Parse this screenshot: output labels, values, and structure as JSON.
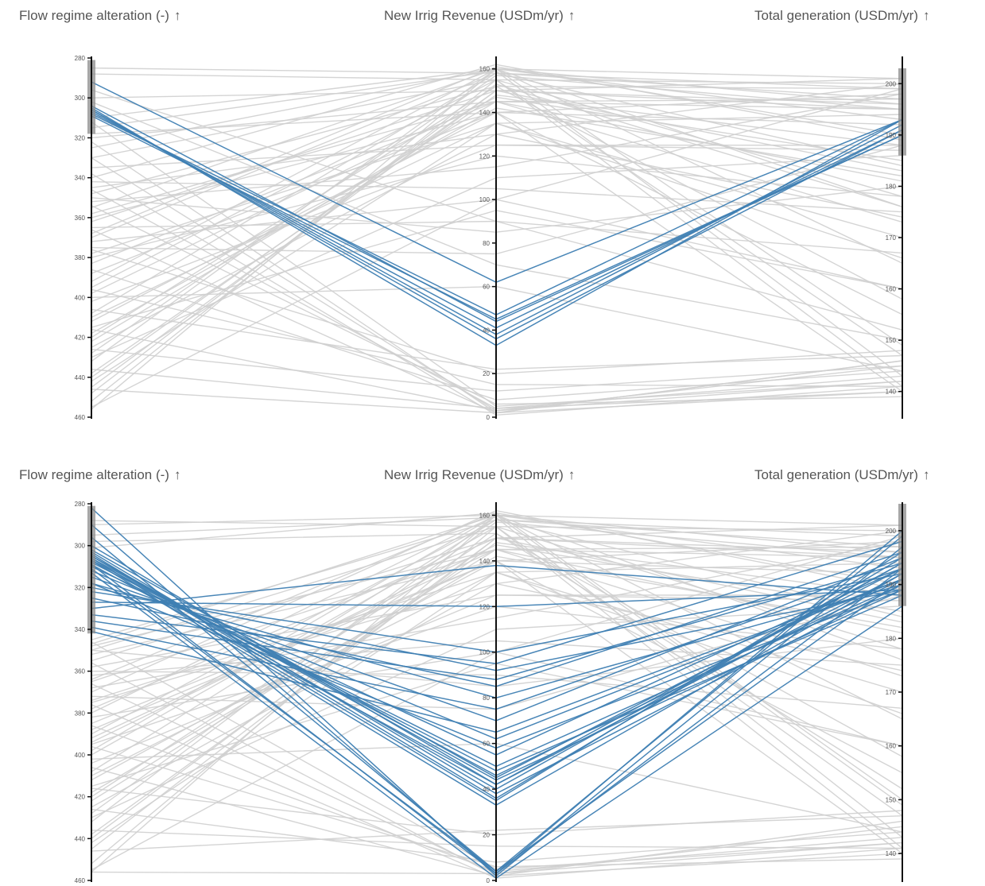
{
  "panels": [
    {
      "id": "top",
      "axes": [
        {
          "title": "Flow regime alteration (-)",
          "arrow": "↑",
          "ticks": [
            "280",
            "300",
            "320",
            "340",
            "360",
            "380",
            "400",
            "420",
            "440",
            "460"
          ]
        },
        {
          "title": "New Irrig Revenue (USDm/yr)",
          "arrow": "↑",
          "ticks": [
            "0",
            "20",
            "40",
            "60",
            "80",
            "100",
            "120",
            "140",
            "160"
          ]
        },
        {
          "title": "Total generation (USDm/yr)",
          "arrow": "↑",
          "ticks": [
            "140",
            "150",
            "160",
            "170",
            "180",
            "190",
            "200"
          ]
        }
      ]
    },
    {
      "id": "bottom",
      "axes": [
        {
          "title": "Flow regime alteration (-)",
          "arrow": "↑",
          "ticks": [
            "280",
            "300",
            "320",
            "340",
            "360",
            "380",
            "400",
            "420",
            "440",
            "460"
          ]
        },
        {
          "title": "New Irrig Revenue (USDm/yr)",
          "arrow": "↑",
          "ticks": [
            "0",
            "20",
            "40",
            "60",
            "80",
            "100",
            "120",
            "140",
            "160"
          ]
        },
        {
          "title": "Total generation (USDm/yr)",
          "arrow": "↑",
          "ticks": [
            "140",
            "150",
            "160",
            "170",
            "180",
            "190",
            "200"
          ]
        }
      ]
    }
  ],
  "colors": {
    "background_lines": "#cfcfcf",
    "highlight_lines": "#3f7fb3",
    "axis": "#111111",
    "brush": "#8a8a8a"
  },
  "chart_data": [
    {
      "type": "parallel-coordinates",
      "dimensions": [
        "Flow regime alteration (-)",
        "New Irrig Revenue (USDm/yr)",
        "Total generation (USDm/yr)"
      ],
      "ranges": [
        [
          460,
          280
        ],
        [
          0,
          165
        ],
        [
          135,
          205
        ]
      ],
      "brushes": [
        {
          "axis": 0,
          "range": [
            281,
            318
          ]
        },
        {
          "axis": 2,
          "range": [
            186,
            203
          ]
        }
      ],
      "highlighted": [
        [
          292,
          62,
          193
        ],
        [
          305,
          33,
          193
        ],
        [
          306,
          38,
          192
        ],
        [
          307,
          41,
          191
        ],
        [
          309,
          45,
          190
        ],
        [
          304,
          44,
          190
        ],
        [
          306,
          36,
          191
        ],
        [
          308,
          47,
          193
        ]
      ],
      "background": [
        [
          285,
          158,
          199
        ],
        [
          300,
          150,
          196
        ],
        [
          320,
          145,
          197
        ],
        [
          340,
          162,
          189
        ],
        [
          345,
          130,
          200
        ],
        [
          355,
          160,
          176
        ],
        [
          360,
          140,
          192
        ],
        [
          370,
          158,
          184
        ],
        [
          380,
          120,
          178
        ],
        [
          395,
          155,
          200
        ],
        [
          410,
          135,
          170
        ],
        [
          420,
          152,
          158
        ],
        [
          430,
          110,
          186
        ],
        [
          445,
          150,
          195
        ],
        [
          455,
          100,
          199
        ],
        [
          350,
          85,
          180
        ],
        [
          365,
          90,
          167
        ],
        [
          375,
          75,
          188
        ],
        [
          388,
          140,
          140
        ],
        [
          400,
          60,
          144
        ],
        [
          415,
          95,
          160
        ],
        [
          425,
          130,
          174
        ],
        [
          440,
          150,
          183
        ],
        [
          456,
          160,
          196
        ],
        [
          330,
          155,
          147
        ],
        [
          335,
          125,
          187
        ],
        [
          342,
          105,
          175
        ],
        [
          352,
          115,
          198
        ],
        [
          362,
          150,
          201
        ],
        [
          372,
          100,
          160
        ],
        [
          383,
          145,
          181
        ],
        [
          392,
          160,
          193
        ],
        [
          402,
          125,
          188
        ],
        [
          412,
          140,
          198
        ],
        [
          422,
          145,
          173
        ],
        [
          432,
          160,
          201
        ],
        [
          442,
          135,
          166
        ],
        [
          452,
          155,
          178
        ],
        [
          325,
          160,
          165
        ],
        [
          318,
          140,
          155
        ],
        [
          312,
          5,
          142
        ],
        [
          322,
          2,
          140
        ],
        [
          330,
          3,
          145
        ],
        [
          338,
          1,
          141
        ],
        [
          346,
          4,
          143
        ],
        [
          354,
          6,
          139
        ],
        [
          366,
          2,
          146
        ],
        [
          376,
          20,
          148
        ],
        [
          386,
          8,
          144
        ],
        [
          396,
          15,
          141
        ],
        [
          406,
          22,
          147
        ],
        [
          416,
          3,
          142
        ],
        [
          426,
          12,
          145
        ],
        [
          436,
          4,
          140
        ],
        [
          446,
          2,
          146
        ],
        [
          296,
          90,
          152
        ],
        [
          302,
          70,
          150
        ],
        [
          310,
          160,
          149
        ],
        [
          315,
          159,
          143
        ],
        [
          288,
          155,
          141
        ],
        [
          348,
          152,
          199
        ],
        [
          358,
          145,
          195
        ],
        [
          368,
          161,
          190
        ],
        [
          378,
          135,
          194
        ],
        [
          398,
          147,
          185
        ],
        [
          408,
          158,
          197
        ],
        [
          418,
          142,
          182
        ],
        [
          428,
          157,
          195
        ],
        [
          438,
          148,
          188
        ],
        [
          448,
          153,
          176
        ]
      ]
    },
    {
      "type": "parallel-coordinates",
      "dimensions": [
        "Flow regime alteration (-)",
        "New Irrig Revenue (USDm/yr)",
        "Total generation (USDm/yr)"
      ],
      "ranges": [
        [
          460,
          280
        ],
        [
          0,
          165
        ],
        [
          135,
          205
        ]
      ],
      "brushes": [
        {
          "axis": 0,
          "range": [
            281,
            342
          ]
        },
        {
          "axis": 2,
          "range": [
            186,
            205
          ]
        }
      ],
      "highlighted": [
        [
          282,
          2,
          197
        ],
        [
          290,
          3,
          193
        ],
        [
          296,
          4,
          191
        ],
        [
          300,
          42,
          192
        ],
        [
          302,
          45,
          193
        ],
        [
          303,
          38,
          190
        ],
        [
          304,
          36,
          195
        ],
        [
          305,
          40,
          194
        ],
        [
          305,
          44,
          189
        ],
        [
          306,
          46,
          191
        ],
        [
          306,
          35,
          196
        ],
        [
          307,
          33,
          192
        ],
        [
          307,
          48,
          188
        ],
        [
          308,
          50,
          190
        ],
        [
          309,
          42,
          194
        ],
        [
          310,
          55,
          193
        ],
        [
          312,
          62,
          191
        ],
        [
          315,
          70,
          195
        ],
        [
          318,
          80,
          190
        ],
        [
          320,
          92,
          189
        ],
        [
          322,
          100,
          192
        ],
        [
          325,
          85,
          196
        ],
        [
          327,
          120,
          189
        ],
        [
          330,
          138,
          188
        ],
        [
          333,
          95,
          198
        ],
        [
          336,
          88,
          194
        ],
        [
          339,
          75,
          193
        ],
        [
          341,
          65,
          191
        ],
        [
          318,
          58,
          189
        ],
        [
          313,
          1,
          186
        ],
        [
          311,
          4,
          199
        ],
        [
          309,
          3,
          200
        ]
      ],
      "background": [
        [
          345,
          158,
          199
        ],
        [
          355,
          150,
          196
        ],
        [
          365,
          145,
          197
        ],
        [
          370,
          162,
          189
        ],
        [
          375,
          130,
          200
        ],
        [
          380,
          160,
          176
        ],
        [
          385,
          140,
          192
        ],
        [
          390,
          158,
          184
        ],
        [
          395,
          120,
          178
        ],
        [
          400,
          155,
          200
        ],
        [
          410,
          135,
          170
        ],
        [
          420,
          152,
          158
        ],
        [
          430,
          110,
          186
        ],
        [
          445,
          150,
          195
        ],
        [
          455,
          100,
          199
        ],
        [
          350,
          85,
          180
        ],
        [
          360,
          90,
          167
        ],
        [
          372,
          75,
          188
        ],
        [
          388,
          140,
          140
        ],
        [
          402,
          60,
          144
        ],
        [
          415,
          95,
          160
        ],
        [
          425,
          130,
          174
        ],
        [
          440,
          150,
          183
        ],
        [
          456,
          160,
          196
        ],
        [
          350,
          155,
          147
        ],
        [
          358,
          125,
          187
        ],
        [
          362,
          105,
          175
        ],
        [
          368,
          115,
          198
        ],
        [
          378,
          150,
          201
        ],
        [
          382,
          100,
          160
        ],
        [
          392,
          145,
          181
        ],
        [
          398,
          160,
          193
        ],
        [
          404,
          125,
          188
        ],
        [
          412,
          140,
          198
        ],
        [
          422,
          145,
          173
        ],
        [
          432,
          160,
          201
        ],
        [
          442,
          135,
          166
        ],
        [
          452,
          155,
          178
        ],
        [
          347,
          160,
          165
        ],
        [
          352,
          140,
          155
        ],
        [
          346,
          5,
          142
        ],
        [
          356,
          2,
          140
        ],
        [
          366,
          3,
          145
        ],
        [
          376,
          1,
          141
        ],
        [
          386,
          4,
          143
        ],
        [
          396,
          6,
          139
        ],
        [
          406,
          2,
          146
        ],
        [
          416,
          20,
          148
        ],
        [
          426,
          8,
          144
        ],
        [
          436,
          15,
          141
        ],
        [
          446,
          22,
          147
        ],
        [
          456,
          3,
          142
        ],
        [
          290,
          160,
          149
        ],
        [
          295,
          159,
          143
        ],
        [
          288,
          155,
          141
        ],
        [
          298,
          152,
          152
        ],
        [
          301,
          161,
          150
        ],
        [
          348,
          145,
          195
        ],
        [
          364,
          161,
          190
        ],
        [
          374,
          135,
          194
        ],
        [
          394,
          147,
          185
        ],
        [
          408,
          158,
          197
        ],
        [
          418,
          142,
          182
        ],
        [
          428,
          157,
          195
        ],
        [
          438,
          148,
          188
        ]
      ]
    }
  ]
}
